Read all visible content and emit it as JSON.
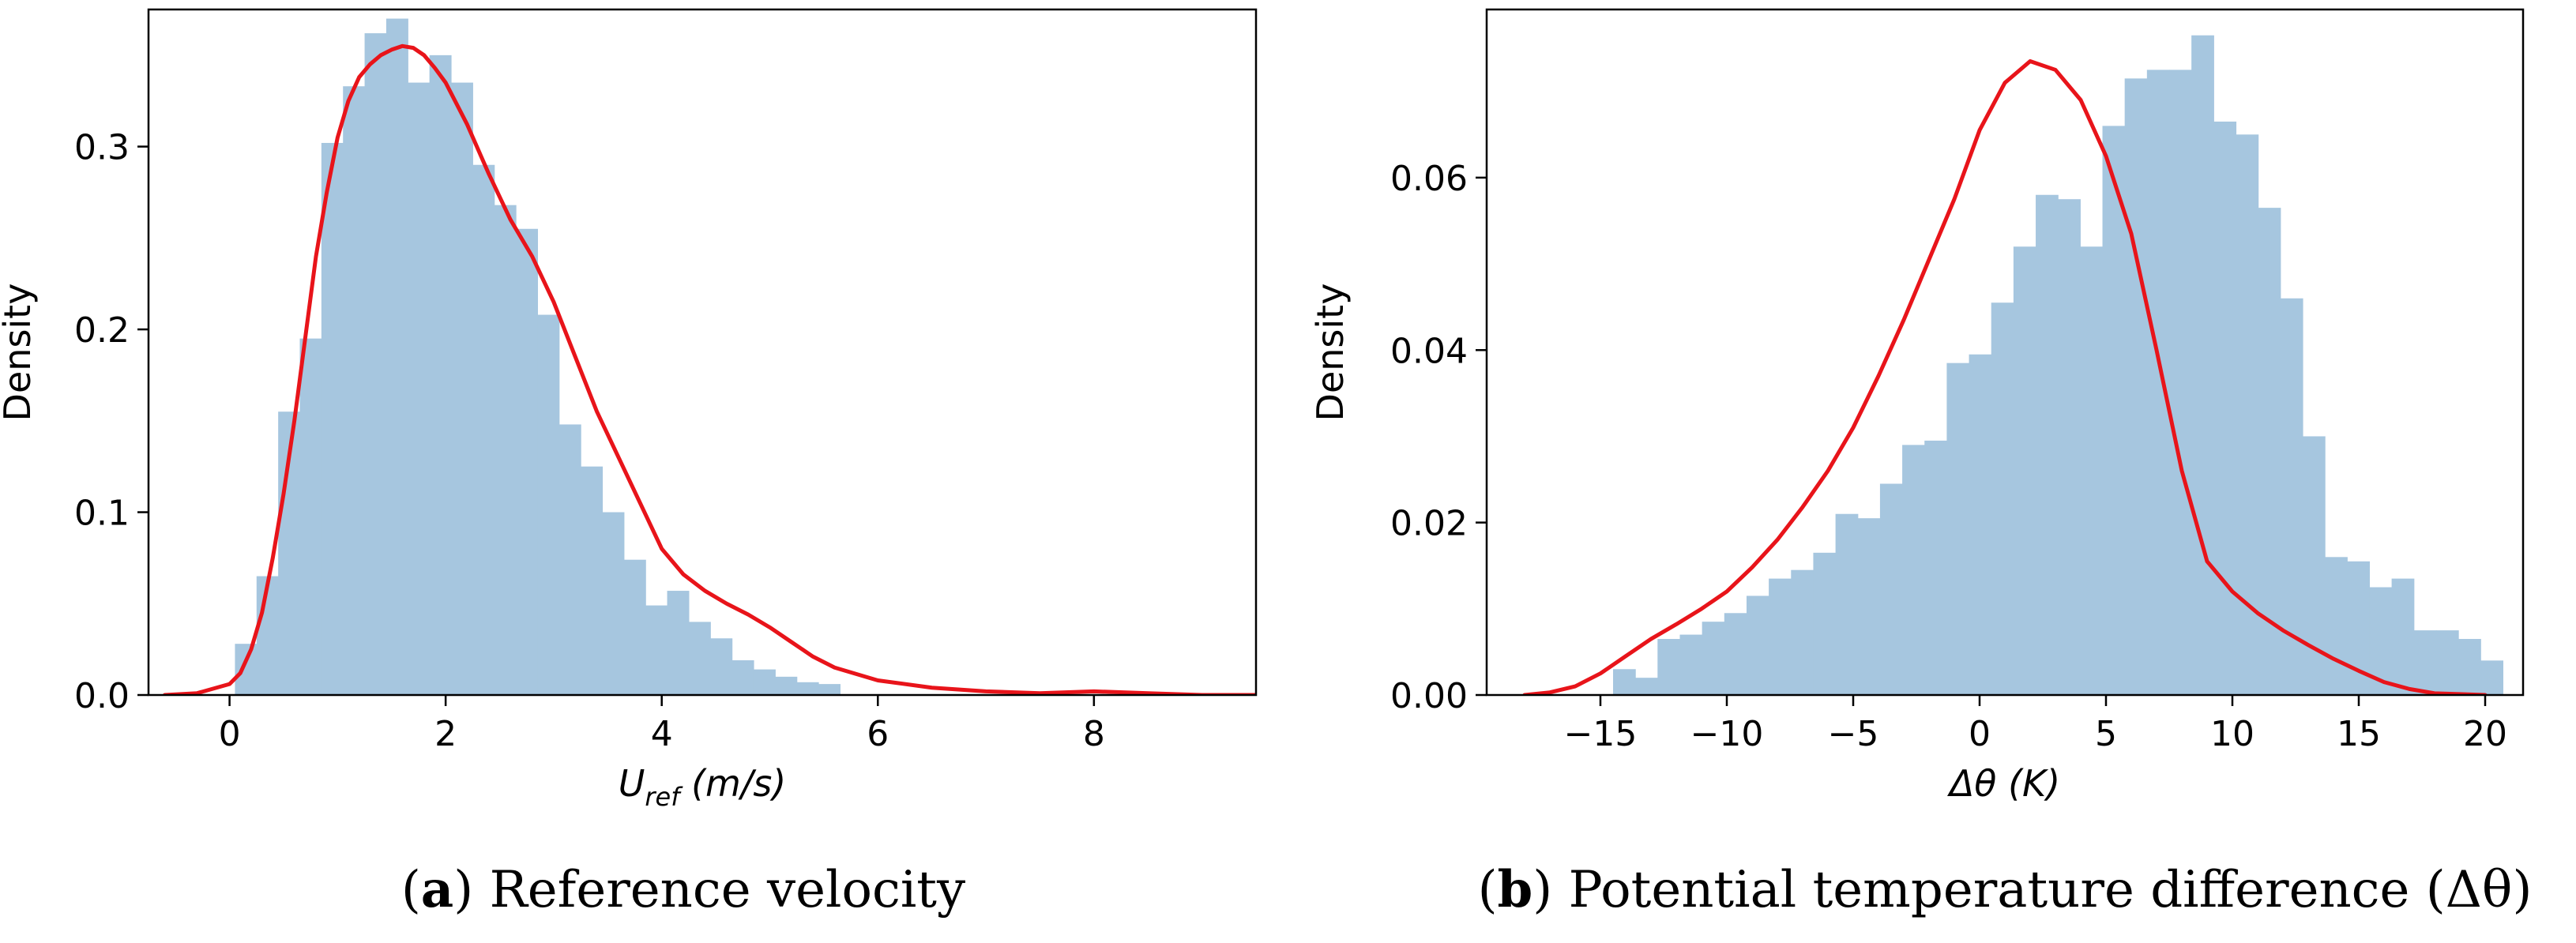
{
  "chart_data": [
    {
      "type": "histogram_kde",
      "caption": {
        "letter": "a",
        "text": "Reference velocity"
      },
      "xlabel": {
        "main": "U",
        "sub": "ref",
        "unit": "(m/s)"
      },
      "ylabel": "Density",
      "xlim": [
        -0.75,
        9.5
      ],
      "ylim": [
        0,
        0.375
      ],
      "xticks": [
        {
          "value": 0,
          "label": "0"
        },
        {
          "value": 2,
          "label": "2"
        },
        {
          "value": 4,
          "label": "4"
        },
        {
          "value": 6,
          "label": "6"
        },
        {
          "value": 8,
          "label": "8"
        }
      ],
      "yticks": [
        {
          "value": 0,
          "label": "0.0"
        },
        {
          "value": 0.1,
          "label": "0.1"
        },
        {
          "value": 0.2,
          "label": "0.2"
        },
        {
          "value": 0.3,
          "label": "0.3"
        }
      ],
      "hist": {
        "color": "#a6c6df",
        "bin_start": 0.05,
        "bin_width": 0.2,
        "values": [
          0.028,
          0.065,
          0.155,
          0.195,
          0.302,
          0.333,
          0.362,
          0.37,
          0.335,
          0.35,
          0.335,
          0.29,
          0.268,
          0.255,
          0.208,
          0.148,
          0.125,
          0.1,
          0.074,
          0.049,
          0.057,
          0.04,
          0.031,
          0.019,
          0.014,
          0.01,
          0.007,
          0.006
        ]
      },
      "kde": {
        "color": "#e8141a",
        "x": [
          -0.6,
          -0.3,
          0.0,
          0.1,
          0.2,
          0.3,
          0.4,
          0.5,
          0.6,
          0.7,
          0.8,
          0.9,
          1.0,
          1.1,
          1.2,
          1.3,
          1.4,
          1.5,
          1.6,
          1.7,
          1.8,
          1.9,
          2.0,
          2.2,
          2.4,
          2.6,
          2.8,
          3.0,
          3.2,
          3.4,
          3.6,
          3.8,
          4.0,
          4.2,
          4.4,
          4.6,
          4.8,
          5.0,
          5.2,
          5.4,
          5.6,
          6.0,
          6.5,
          7.0,
          7.5,
          8.0,
          8.5,
          9.0,
          9.5
        ],
        "y": [
          0.0,
          0.001,
          0.006,
          0.012,
          0.025,
          0.045,
          0.075,
          0.11,
          0.15,
          0.195,
          0.24,
          0.275,
          0.305,
          0.325,
          0.338,
          0.345,
          0.35,
          0.353,
          0.355,
          0.354,
          0.35,
          0.343,
          0.335,
          0.312,
          0.285,
          0.26,
          0.24,
          0.215,
          0.185,
          0.155,
          0.13,
          0.105,
          0.08,
          0.066,
          0.057,
          0.05,
          0.044,
          0.037,
          0.029,
          0.021,
          0.015,
          0.008,
          0.004,
          0.002,
          0.001,
          0.002,
          0.001,
          0.0,
          0.0
        ]
      }
    },
    {
      "type": "histogram_kde",
      "caption": {
        "letter": "b",
        "text": "Potential temperature difference (Δθ)"
      },
      "xlabel": {
        "main": "Δθ",
        "sub": "",
        "unit": "(K)"
      },
      "ylabel": "Density",
      "xlim": [
        -19.5,
        21.5
      ],
      "ylim": [
        0,
        0.0795
      ],
      "xticks": [
        {
          "value": -15,
          "label": "−15"
        },
        {
          "value": -10,
          "label": "−10"
        },
        {
          "value": -5,
          "label": "−5"
        },
        {
          "value": 0,
          "label": "0"
        },
        {
          "value": 5,
          "label": "5"
        },
        {
          "value": 10,
          "label": "10"
        },
        {
          "value": 15,
          "label": "15"
        },
        {
          "value": 20,
          "label": "20"
        }
      ],
      "yticks": [
        {
          "value": 0,
          "label": "0.00"
        },
        {
          "value": 0.02,
          "label": "0.02"
        },
        {
          "value": 0.04,
          "label": "0.04"
        },
        {
          "value": 0.06,
          "label": "0.06"
        }
      ],
      "hist": {
        "color": "#a6c6df",
        "bin_start": -14.5,
        "bin_width": 0.88,
        "values": [
          0.003,
          0.002,
          0.0065,
          0.007,
          0.0085,
          0.0095,
          0.0115,
          0.0135,
          0.0145,
          0.0165,
          0.021,
          0.0205,
          0.0245,
          0.029,
          0.0295,
          0.0385,
          0.0395,
          0.0455,
          0.052,
          0.058,
          0.0575,
          0.052,
          0.066,
          0.0715,
          0.0725,
          0.0725,
          0.0765,
          0.0665,
          0.065,
          0.0565,
          0.046,
          0.03,
          0.016,
          0.0155,
          0.0125,
          0.0135,
          0.0075,
          0.0075,
          0.0065,
          0.004
        ]
      },
      "kde": {
        "color": "#e8141a",
        "x": [
          -18,
          -17,
          -16,
          -15,
          -14,
          -13,
          -12,
          -11,
          -10,
          -9,
          -8,
          -7,
          -6,
          -5,
          -4,
          -3,
          -2,
          -1,
          0,
          1,
          2,
          3,
          4,
          5,
          6,
          7,
          8,
          9,
          10,
          11,
          12,
          13,
          14,
          15,
          16,
          17,
          18,
          19,
          20
        ],
        "y": [
          0.0,
          0.0003,
          0.001,
          0.0025,
          0.0045,
          0.0065,
          0.0082,
          0.01,
          0.012,
          0.0148,
          0.018,
          0.0218,
          0.026,
          0.031,
          0.037,
          0.0435,
          0.0505,
          0.0575,
          0.0655,
          0.071,
          0.0735,
          0.0725,
          0.069,
          0.0625,
          0.0535,
          0.04,
          0.026,
          0.0155,
          0.012,
          0.0095,
          0.0075,
          0.0058,
          0.0042,
          0.0028,
          0.0015,
          0.0007,
          0.0002,
          0.0001,
          0.0
        ]
      }
    }
  ]
}
